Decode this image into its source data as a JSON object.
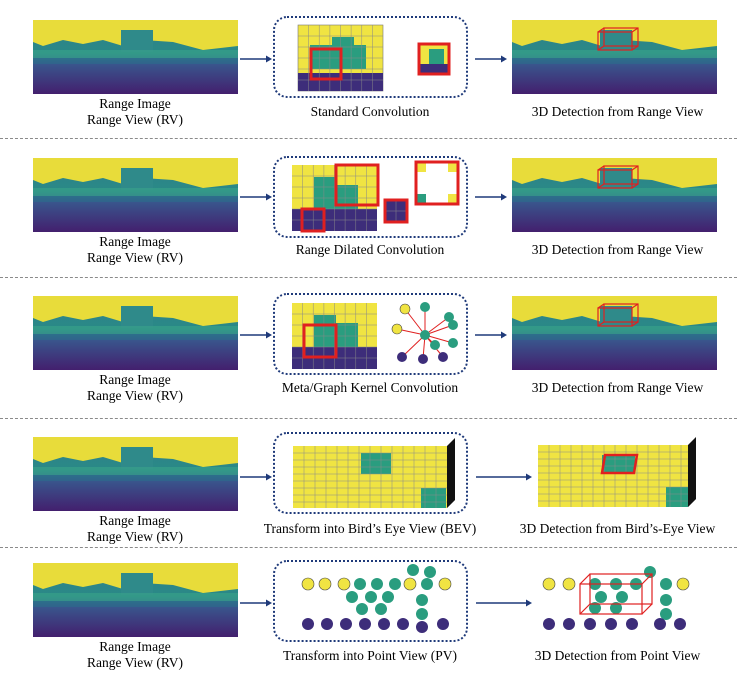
{
  "rows": [
    {
      "left_caption": [
        "Range Image",
        "Range View (RV)"
      ],
      "middle_caption": "Standard Convolution",
      "right_caption": "3D Detection from Range View"
    },
    {
      "left_caption": [
        "Range Image",
        "Range View (RV)"
      ],
      "middle_caption": "Range Dilated Convolution",
      "right_caption": "3D Detection from Range View"
    },
    {
      "left_caption": [
        "Range Image",
        "Range View (RV)"
      ],
      "middle_caption": "Meta/Graph Kernel Convolution",
      "right_caption": "3D Detection from Range View"
    },
    {
      "left_caption": [
        "Range Image",
        "Range View (RV)"
      ],
      "middle_caption": "Transform into Bird’s Eye View (BEV)",
      "right_caption": "3D Detection from Bird’s-Eye View"
    },
    {
      "left_caption": [
        "Range Image",
        "Range View (RV)"
      ],
      "middle_caption": "Transform into Point View (PV)",
      "right_caption": "3D Detection from Point View"
    }
  ],
  "colors": {
    "yellow": "#f0e442",
    "teal": "#2a9d7f",
    "purple": "#3d2d7a",
    "red": "#e02020",
    "arrow": "#1f3a7a"
  }
}
